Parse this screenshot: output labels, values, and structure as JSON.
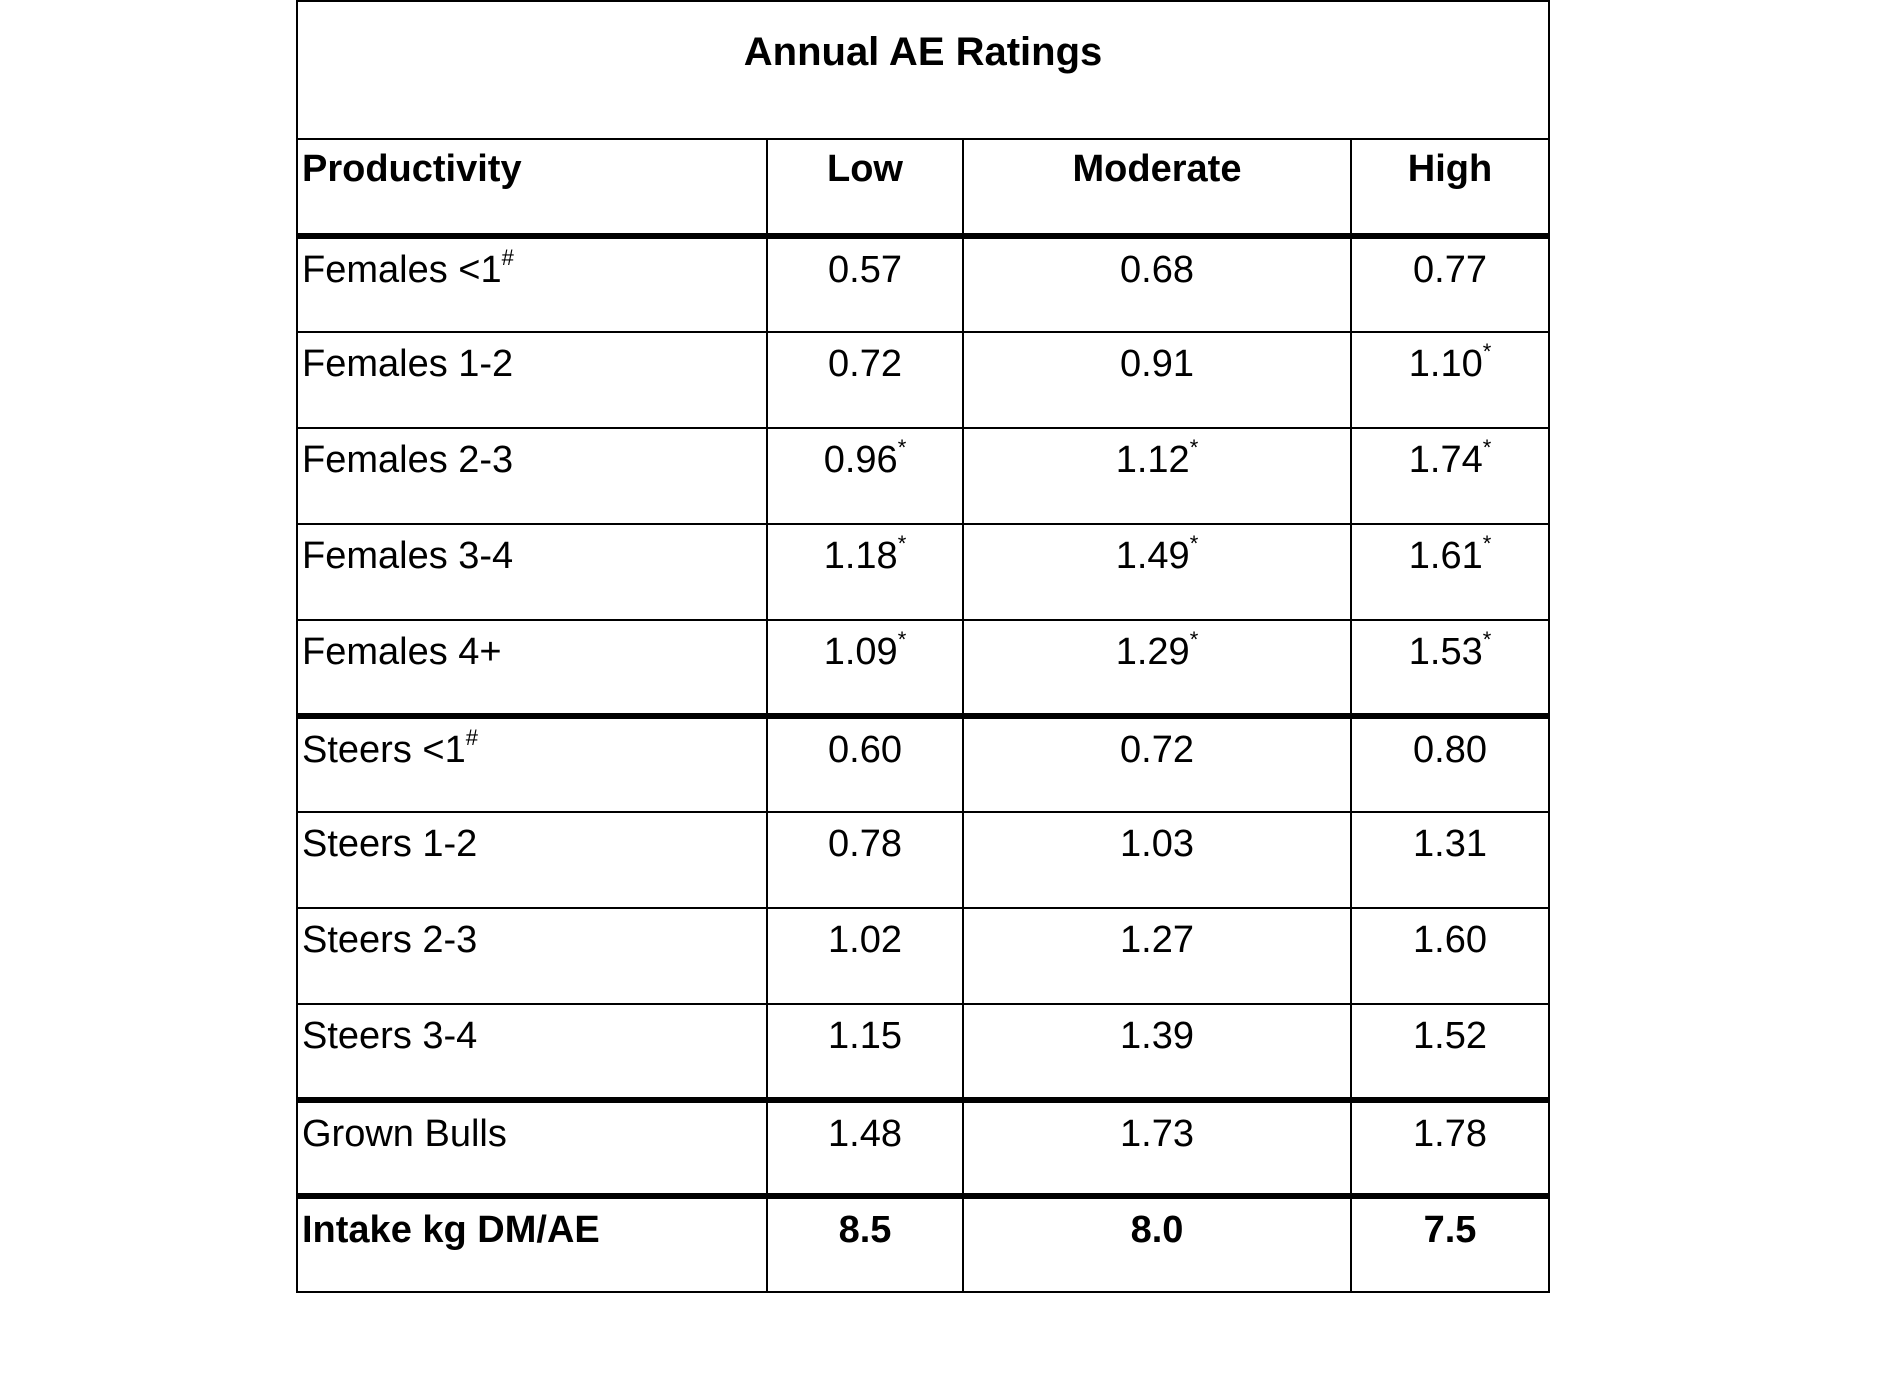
{
  "title": "Annual AE Ratings",
  "columns": [
    "Productivity",
    "Low",
    "Moderate",
    "High"
  ],
  "rows": [
    {
      "label": "Females <1",
      "label_mark": "#",
      "values": [
        "0.57",
        "0.68",
        "0.77"
      ],
      "marks": [
        "",
        "",
        ""
      ]
    },
    {
      "label": "Females 1-2",
      "label_mark": "",
      "values": [
        "0.72",
        "0.91",
        "1.10"
      ],
      "marks": [
        "",
        "",
        "*"
      ]
    },
    {
      "label": "Females 2-3",
      "label_mark": "",
      "values": [
        "0.96",
        "1.12",
        "1.74"
      ],
      "marks": [
        "*",
        "*",
        "*"
      ]
    },
    {
      "label": "Females 3-4",
      "label_mark": "",
      "values": [
        "1.18",
        "1.49",
        "1.61"
      ],
      "marks": [
        "*",
        "*",
        "*"
      ]
    },
    {
      "label": "Females 4+",
      "label_mark": "",
      "values": [
        "1.09",
        "1.29",
        "1.53"
      ],
      "marks": [
        "*",
        "*",
        "*"
      ]
    },
    {
      "label": "Steers <1",
      "label_mark": "#",
      "values": [
        "0.60",
        "0.72",
        "0.80"
      ],
      "marks": [
        "",
        "",
        ""
      ]
    },
    {
      "label": "Steers 1-2",
      "label_mark": "",
      "values": [
        "0.78",
        "1.03",
        "1.31"
      ],
      "marks": [
        "",
        "",
        ""
      ]
    },
    {
      "label": "Steers 2-3",
      "label_mark": "",
      "values": [
        "1.02",
        "1.27",
        "1.60"
      ],
      "marks": [
        "",
        "",
        ""
      ]
    },
    {
      "label": "Steers 3-4",
      "label_mark": "",
      "values": [
        "1.15",
        "1.39",
        "1.52"
      ],
      "marks": [
        "",
        "",
        ""
      ]
    },
    {
      "label": "Grown Bulls",
      "label_mark": "",
      "values": [
        "1.48",
        "1.73",
        "1.78"
      ],
      "marks": [
        "",
        "",
        ""
      ]
    },
    {
      "label": "Intake kg DM/AE",
      "label_mark": "",
      "values": [
        "8.5",
        "8.0",
        "7.5"
      ],
      "marks": [
        "",
        "",
        ""
      ]
    }
  ]
}
